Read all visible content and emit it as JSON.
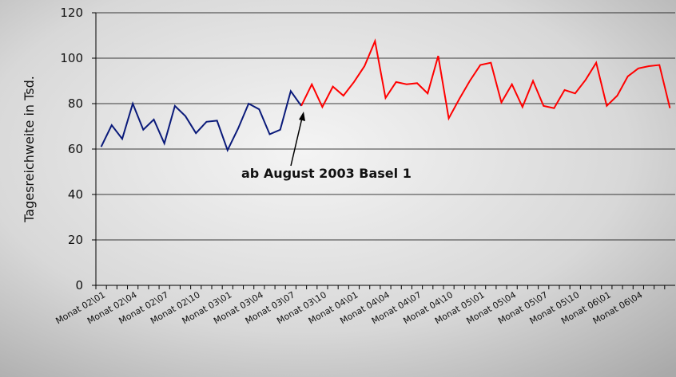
{
  "chart_data": {
    "type": "line",
    "y_label": "Tagesreichweite in Tsd.",
    "annotation": "ab August 2003 Basel 1",
    "categories": [
      "Monat 02\\01",
      null,
      null,
      "Monat 02\\04",
      null,
      null,
      "Monat 02\\07",
      null,
      null,
      "Monat 02\\10",
      null,
      null,
      "Monat 03\\01",
      null,
      null,
      "Monat 03\\04",
      null,
      null,
      "Monat 03\\07",
      null,
      null,
      "Monat 03\\10",
      null,
      null,
      "Monat 04\\01",
      null,
      null,
      "Monat 04\\04",
      null,
      null,
      "Monat 04\\07",
      null,
      null,
      "Monat 04\\10",
      null,
      null,
      "Monat 05\\01",
      null,
      null,
      "Monat 05\\04",
      null,
      null,
      "Monat 05\\07",
      null,
      null,
      "Monat 05\\10",
      null,
      null,
      "Monat 06\\01",
      null,
      null,
      "Monat 06\\04",
      null,
      null,
      null
    ],
    "series": [
      {
        "color": "#0a1a7a",
        "values": [
          61,
          70.5,
          64.5,
          80,
          68.5,
          73,
          62.5,
          79,
          74.5,
          67,
          72,
          72.5,
          59.5,
          69,
          80,
          77.5,
          66.5,
          68.5,
          85.5,
          79,
          null,
          null,
          null,
          null,
          null,
          null,
          null,
          null,
          null,
          null,
          null,
          null,
          null,
          null,
          null,
          null,
          null,
          null,
          null,
          null,
          null,
          null,
          null,
          null,
          null,
          null,
          null,
          null,
          null,
          null,
          null,
          null,
          null,
          null,
          null
        ]
      },
      {
        "color": "#ff0000",
        "values": [
          null,
          null,
          null,
          null,
          null,
          null,
          null,
          null,
          null,
          null,
          null,
          null,
          null,
          null,
          null,
          null,
          null,
          null,
          null,
          79,
          88.5,
          78.5,
          87.5,
          83.5,
          89.5,
          96.5,
          107.5,
          82.5,
          89.5,
          88.5,
          89,
          84.5,
          101,
          73.5,
          82,
          90,
          97,
          98,
          80.5,
          88.5,
          78.5,
          90,
          79,
          78,
          86,
          84.5,
          90.5,
          98,
          79,
          83.5,
          92,
          95.5,
          96.5,
          97,
          78
        ]
      }
    ],
    "ylim": [
      0,
      120
    ],
    "yticks": [
      0,
      20,
      40,
      60,
      80,
      100,
      120
    ],
    "grid": true
  }
}
